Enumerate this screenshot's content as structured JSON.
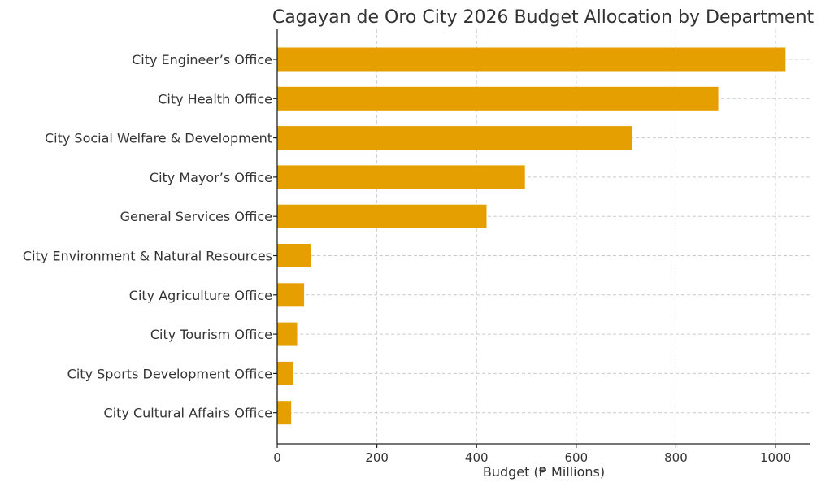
{
  "chart_data": {
    "type": "bar",
    "orientation": "horizontal",
    "title": "Cagayan de Oro City 2026 Budget Allocation by Department",
    "xlabel": "Budget (₱ Millions)",
    "ylabel": "",
    "categories": [
      "City Engineer’s Office",
      "City Health Office",
      "City Social Welfare & Development",
      "City Mayor’s Office",
      "General Services Office",
      "City Environment & Natural Resources",
      "City Agriculture Office",
      "City Tourism Office",
      "City Sports Development Office",
      "City Cultural Affairs Office"
    ],
    "values": [
      1020,
      885,
      712,
      497,
      420,
      67,
      54,
      40,
      32,
      28
    ],
    "xlim": [
      0,
      1070
    ],
    "xticks": [
      0,
      200,
      400,
      600,
      800,
      1000
    ],
    "grid": true,
    "bar_color": "#E69F00"
  }
}
